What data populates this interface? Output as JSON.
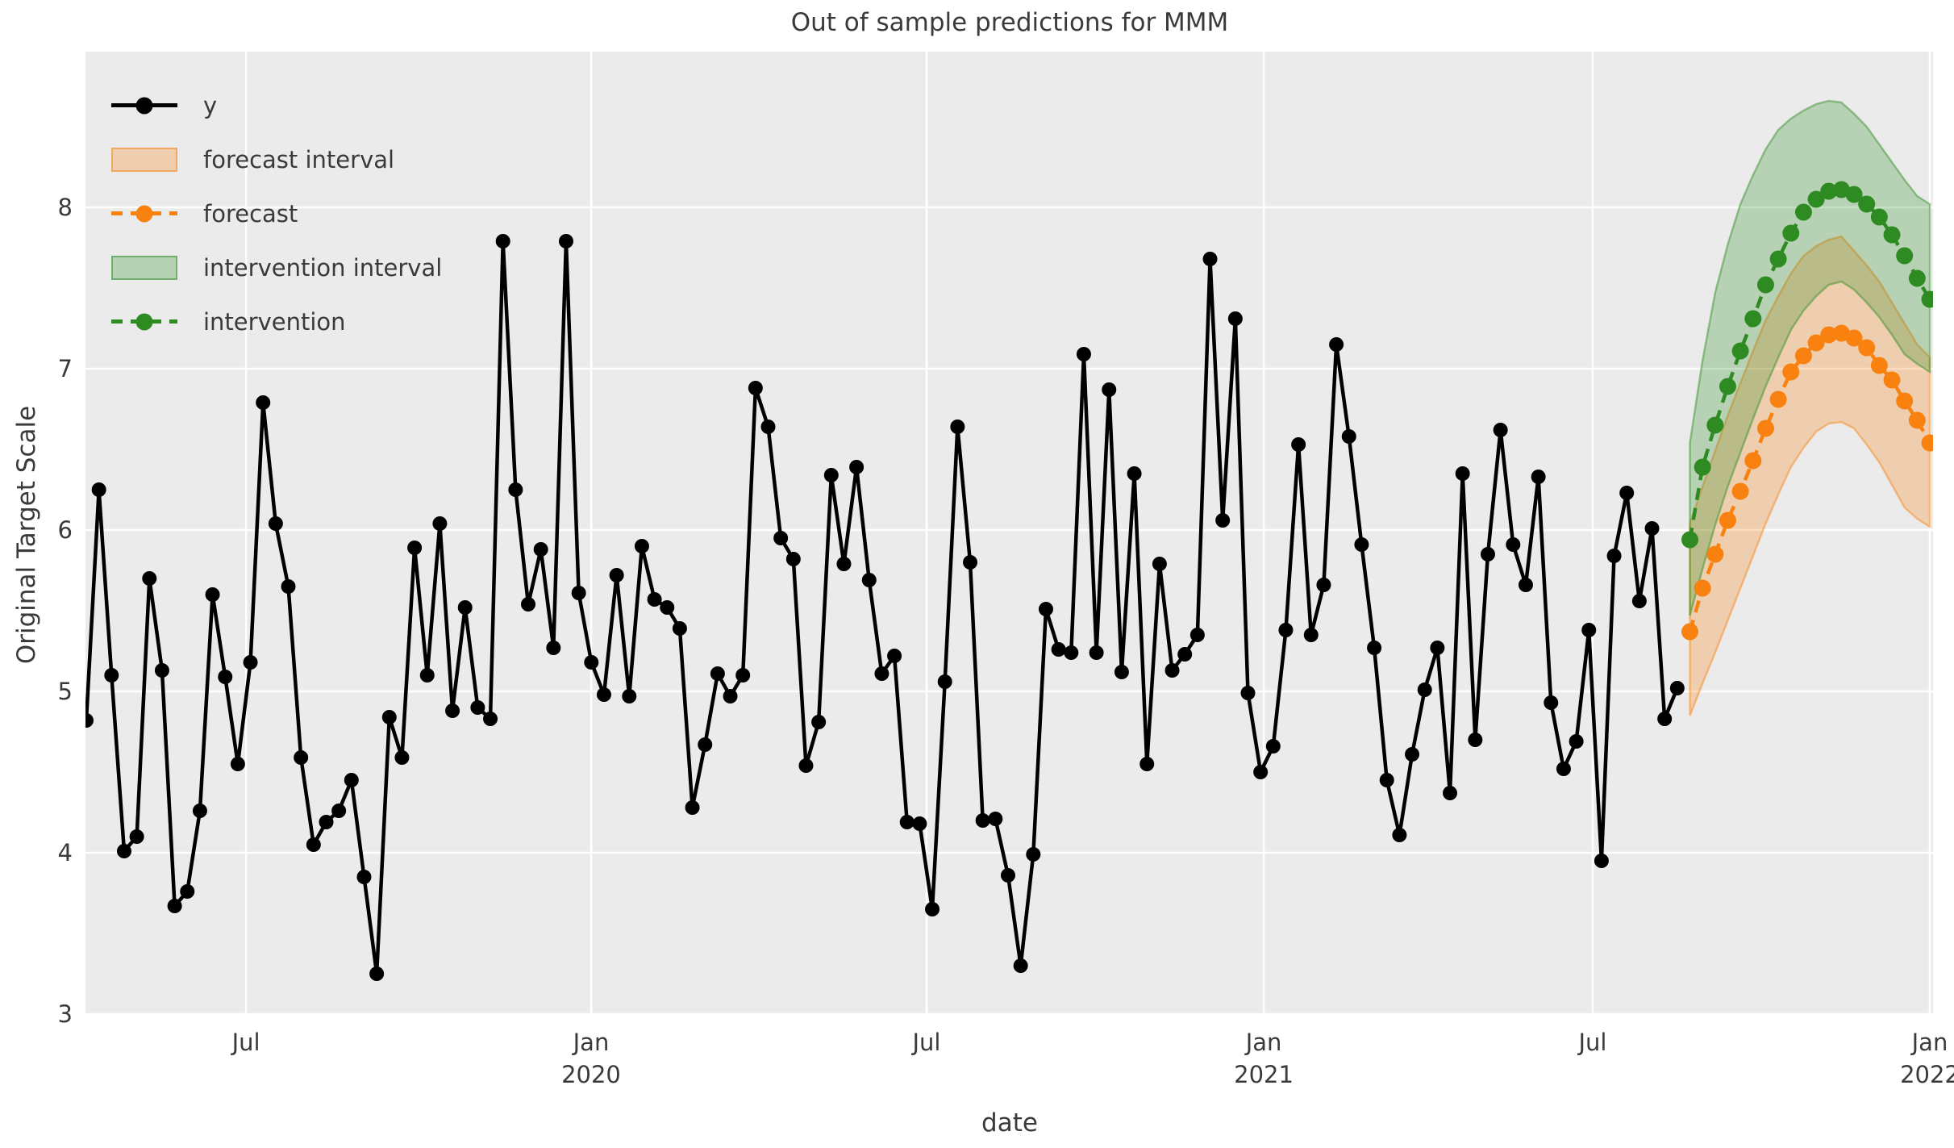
{
  "chart_data": {
    "type": "line",
    "title": "Out of sample predictions for MMM",
    "xlabel": "date",
    "ylabel": "Original Target Scale",
    "background": "#ebebeb",
    "grid_color": "#ffffff",
    "ylim": [
      3,
      8.97
    ],
    "y_ticks": [
      3,
      4,
      5,
      6,
      7,
      8
    ],
    "x_ticks": [
      {
        "label": "Jul",
        "year": "",
        "i": 12.65
      },
      {
        "label": "Jan",
        "year": "2020",
        "i": 39.98
      },
      {
        "label": "Jul",
        "year": "",
        "i": 66.55
      },
      {
        "label": "Jan",
        "year": "2021",
        "i": 93.25
      },
      {
        "label": "Jul",
        "year": "",
        "i": 119.3
      },
      {
        "label": "Jan",
        "year": "2022",
        "i": 146
      }
    ],
    "series_y": {
      "name": "y",
      "color": "#000000",
      "start_index": 0,
      "values": [
        4.82,
        6.25,
        5.1,
        4.01,
        4.1,
        5.7,
        5.13,
        3.67,
        3.76,
        4.26,
        5.6,
        5.09,
        4.55,
        5.18,
        6.79,
        6.04,
        5.65,
        4.59,
        4.05,
        4.19,
        4.26,
        4.45,
        3.85,
        3.25,
        4.84,
        4.59,
        5.89,
        5.1,
        6.04,
        4.88,
        5.52,
        4.9,
        4.83,
        7.79,
        6.25,
        5.54,
        5.88,
        5.27,
        7.79,
        5.61,
        5.18,
        4.98,
        5.72,
        4.97,
        5.9,
        5.57,
        5.52,
        5.39,
        4.28,
        4.67,
        5.11,
        4.97,
        5.1,
        6.88,
        6.64,
        5.95,
        5.82,
        4.54,
        4.81,
        6.34,
        5.79,
        6.39,
        5.69,
        5.11,
        5.22,
        4.19,
        4.18,
        3.65,
        5.06,
        6.64,
        5.8,
        4.2,
        4.21,
        3.86,
        3.3,
        3.99,
        5.51,
        5.26,
        5.24,
        7.09,
        5.24,
        6.87,
        5.12,
        6.35,
        4.55,
        5.79,
        5.13,
        5.23,
        5.35,
        7.68,
        6.06,
        7.31,
        4.99,
        4.5,
        4.66,
        5.38,
        6.53,
        5.35,
        5.66,
        7.15,
        6.58,
        5.91,
        5.27,
        4.45,
        4.11,
        4.61,
        5.01,
        5.27,
        4.37,
        6.35,
        4.7,
        5.85,
        6.62,
        5.91,
        5.66,
        6.33,
        4.93,
        4.52,
        4.69,
        5.38,
        3.95,
        5.84,
        6.23,
        5.56,
        6.01,
        4.83,
        5.02
      ]
    },
    "forecast": {
      "name": "forecast",
      "color": "#f8810f",
      "start_index": 127,
      "values": [
        5.37,
        5.64,
        5.85,
        6.06,
        6.24,
        6.43,
        6.63,
        6.81,
        6.98,
        7.08,
        7.16,
        7.21,
        7.22,
        7.19,
        7.13,
        7.02,
        6.93,
        6.8,
        6.68,
        6.54
      ],
      "lower": [
        4.85,
        5.05,
        5.24,
        5.44,
        5.64,
        5.84,
        6.04,
        6.22,
        6.39,
        6.51,
        6.61,
        6.66,
        6.67,
        6.63,
        6.53,
        6.42,
        6.28,
        6.14,
        6.07,
        6.02
      ],
      "upper": [
        6.04,
        6.27,
        6.49,
        6.71,
        6.91,
        7.11,
        7.3,
        7.45,
        7.59,
        7.7,
        7.76,
        7.8,
        7.82,
        7.73,
        7.64,
        7.54,
        7.41,
        7.28,
        7.15,
        7.07
      ]
    },
    "intervention": {
      "name": "intervention",
      "color": "#2e8b22",
      "start_index": 127,
      "values": [
        5.94,
        6.39,
        6.65,
        6.89,
        7.11,
        7.31,
        7.52,
        7.68,
        7.84,
        7.97,
        8.05,
        8.1,
        8.11,
        8.08,
        8.02,
        7.94,
        7.83,
        7.7,
        7.56,
        7.43
      ],
      "lower": [
        5.47,
        5.76,
        6.03,
        6.27,
        6.48,
        6.69,
        6.89,
        7.07,
        7.24,
        7.36,
        7.45,
        7.52,
        7.54,
        7.49,
        7.41,
        7.32,
        7.21,
        7.09,
        7.03,
        6.98
      ],
      "upper": [
        6.54,
        7.05,
        7.47,
        7.77,
        8.02,
        8.2,
        8.36,
        8.48,
        8.55,
        8.6,
        8.64,
        8.66,
        8.65,
        8.58,
        8.5,
        8.39,
        8.28,
        8.17,
        8.07,
        8.02
      ]
    },
    "legend": [
      {
        "label": "y",
        "type": "line",
        "color": "#000000"
      },
      {
        "label": "forecast interval",
        "type": "patch",
        "color": "#f8810f"
      },
      {
        "label": "forecast",
        "type": "dashed",
        "color": "#f8810f"
      },
      {
        "label": "intervention interval",
        "type": "patch",
        "color": "#2e8b22"
      },
      {
        "label": "intervention",
        "type": "dashed",
        "color": "#2e8b22"
      }
    ]
  }
}
